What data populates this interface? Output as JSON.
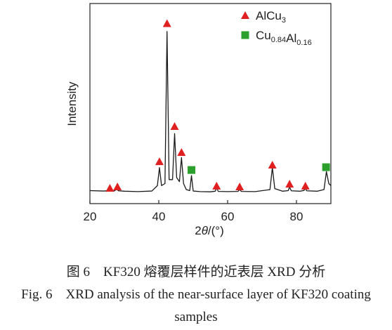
{
  "chart_data": {
    "type": "line",
    "xlabel": "2θ/(°)",
    "ylabel": "Intensity",
    "xlim": [
      20,
      90
    ],
    "ylim": [
      0,
      100
    ],
    "xticks": [
      20,
      40,
      60,
      80
    ],
    "color": "#1a1a1a",
    "x": [
      20,
      24,
      25.5,
      25.8,
      26.2,
      27,
      27.8,
      28.3,
      30,
      34,
      38,
      39.6,
      40.2,
      40.8,
      41.8,
      42.4,
      43,
      44,
      44.6,
      45.2,
      46,
      46.6,
      47.2,
      48,
      49,
      49.5,
      50,
      52,
      55,
      56.4,
      56.8,
      57.3,
      60,
      63,
      63.5,
      64,
      68,
      72.3,
      73,
      73.7,
      76,
      77.6,
      78,
      78.5,
      81,
      82.2,
      82.6,
      83,
      86,
      88,
      88.7,
      89.4,
      90
    ],
    "values": [
      6.5,
      6.3,
      6.5,
      7.5,
      6.5,
      6.3,
      7.2,
      6.4,
      6.2,
      6.0,
      6.3,
      9,
      18,
      9,
      10,
      86,
      12,
      12,
      35,
      13,
      11,
      23,
      10,
      7,
      6.5,
      14,
      6.3,
      6,
      5.9,
      6.2,
      7.8,
      6.1,
      6,
      6.1,
      7.0,
      6.1,
      6.0,
      7,
      18,
      7.5,
      6.2,
      6.5,
      8.3,
      6.4,
      6.2,
      6.6,
      7.5,
      6.4,
      6.2,
      7,
      16,
      10,
      9
    ],
    "series": [
      {
        "name": "AlCu3",
        "marker": "triangle",
        "color": "#e02020",
        "x": [
          25.8,
          28,
          40.2,
          42.4,
          44.6,
          46.6,
          56.8,
          63.5,
          73,
          78,
          82.6
        ],
        "values": [
          7.7,
          8.4,
          21,
          90,
          38.6,
          25.6,
          8.8,
          8.4,
          19.3,
          9.8,
          8.8
        ]
      },
      {
        "name": "Cu0.84Al0.16",
        "marker": "square",
        "color": "#2ca02c",
        "x": [
          49.5,
          88.6
        ],
        "values": [
          16.8,
          18.2
        ]
      }
    ],
    "legend": "upper right"
  },
  "caption": {
    "zh": "图 6　KF320 熔覆层样件的近表层 XRD 分析",
    "en": "Fig. 6　XRD analysis of the near-surface layer of KF320 coating samples"
  }
}
